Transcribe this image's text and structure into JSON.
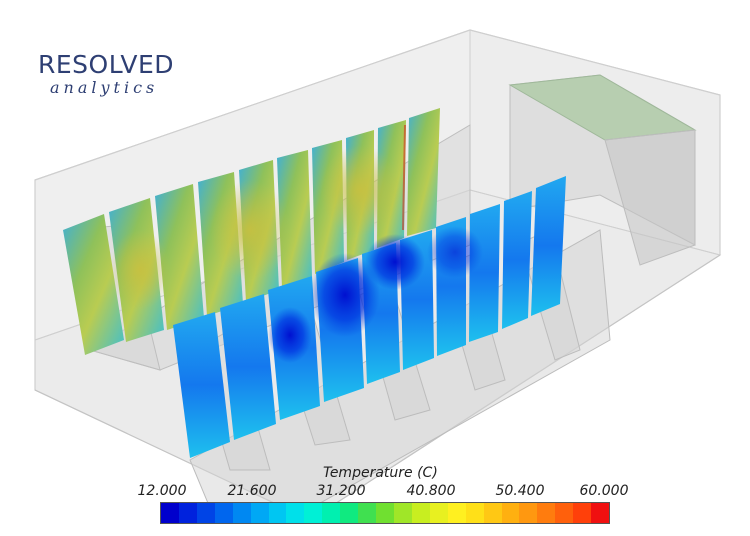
{
  "logo": {
    "main": "RESOLVED",
    "sub": "analytics"
  },
  "legend": {
    "title": "Temperature (C)",
    "ticks": [
      "12.000",
      "21.600",
      "31.200",
      "40.800",
      "50.400",
      "60.000"
    ],
    "colors": [
      "#0000cc",
      "#0022dd",
      "#0044e6",
      "#0066ee",
      "#0088f2",
      "#00a8f5",
      "#00c6f2",
      "#00e0ea",
      "#00f0d6",
      "#00f0b0",
      "#10ea80",
      "#40e050",
      "#70e030",
      "#a0e628",
      "#c8ee20",
      "#e8f020",
      "#fff020",
      "#ffe018",
      "#ffc814",
      "#ffb010",
      "#ff9810",
      "#ff7c0e",
      "#ff600c",
      "#ff400a",
      "#f01010"
    ]
  },
  "colors": {
    "room_glass": "#dcdcdc",
    "cool_aisle": "#1e6bff",
    "hot_aisle": "#8fc15a"
  }
}
